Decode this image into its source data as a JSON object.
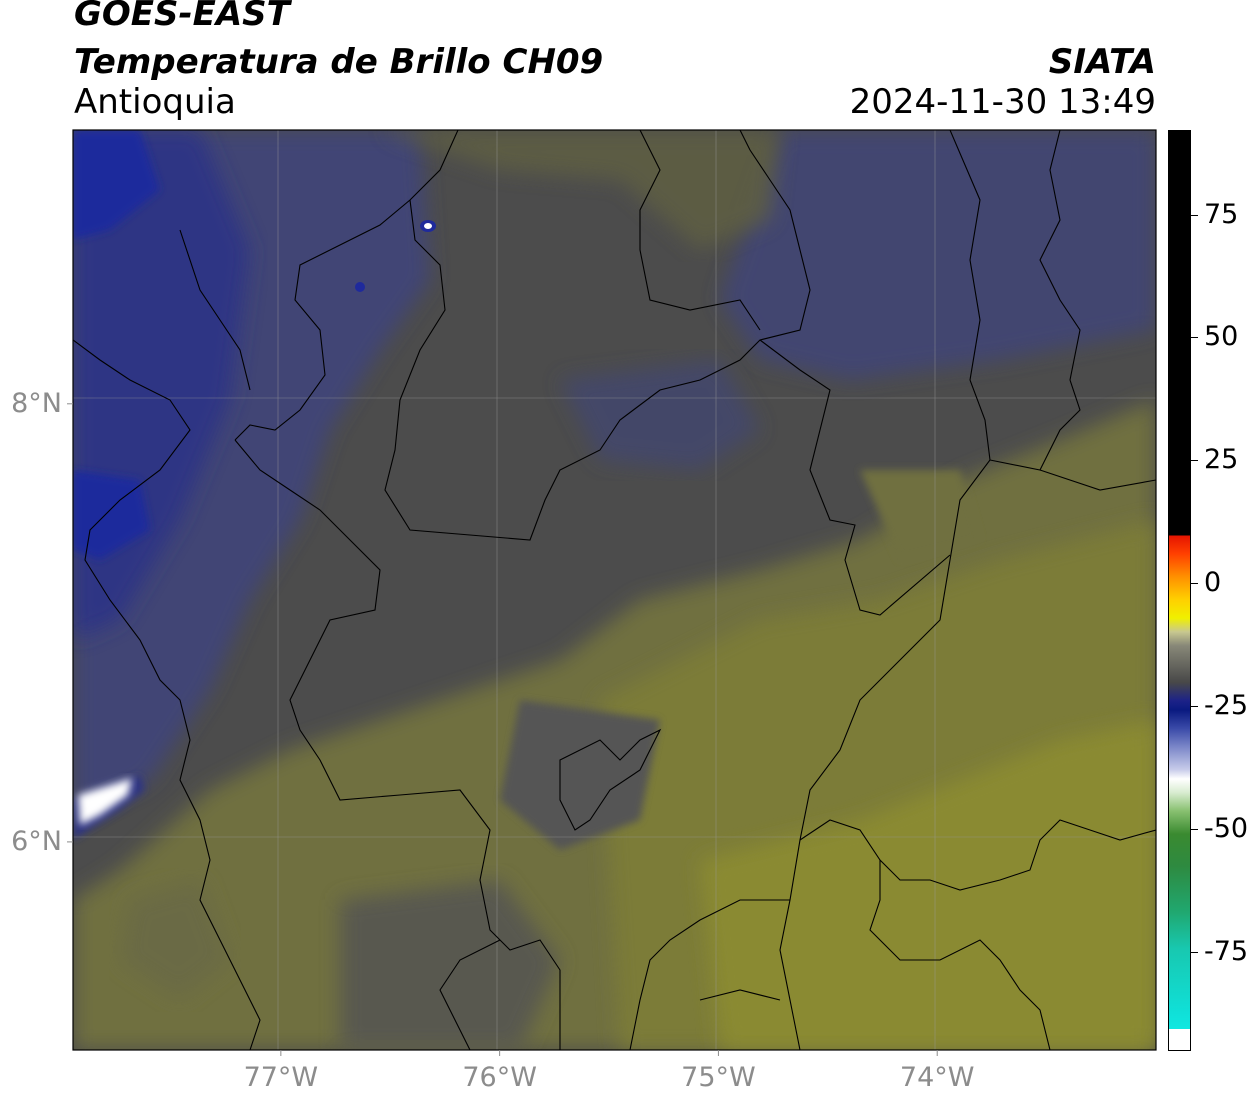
{
  "title": {
    "satellite": "GOES-EAST",
    "product": "Temperatura de Brillo CH09",
    "region": "Antioquia",
    "agency": "SIATA",
    "datetime": "2024-11-30 13:49"
  },
  "map": {
    "lon_range": [
      -77.95,
      -73.0
    ],
    "lat_range": [
      5.05,
      9.25
    ],
    "lon_ticks": [
      {
        "value": -77,
        "label": "77°W"
      },
      {
        "value": -76,
        "label": "76°W"
      },
      {
        "value": -75,
        "label": "75°W"
      },
      {
        "value": -74,
        "label": "74°W"
      }
    ],
    "lat_ticks": [
      {
        "value": 8,
        "label": "8°N"
      },
      {
        "value": 6,
        "label": "6°N"
      }
    ],
    "gridlines": true,
    "colors": {
      "dark_gray": "#4c4c4c",
      "olive": "#707040",
      "yellow_olive": "#8a8a32",
      "dark_blue": "#2b3072",
      "navy": "#1a237e",
      "white_cold": "#ffffff"
    }
  },
  "colorbar": {
    "range": [
      -95,
      92
    ],
    "ticks": [
      {
        "value": 75,
        "label": "75"
      },
      {
        "value": 50,
        "label": "50"
      },
      {
        "value": 25,
        "label": "25"
      },
      {
        "value": 0,
        "label": "0"
      },
      {
        "value": -25,
        "label": "-25"
      },
      {
        "value": -50,
        "label": "-50"
      },
      {
        "value": -75,
        "label": "-75"
      }
    ]
  }
}
